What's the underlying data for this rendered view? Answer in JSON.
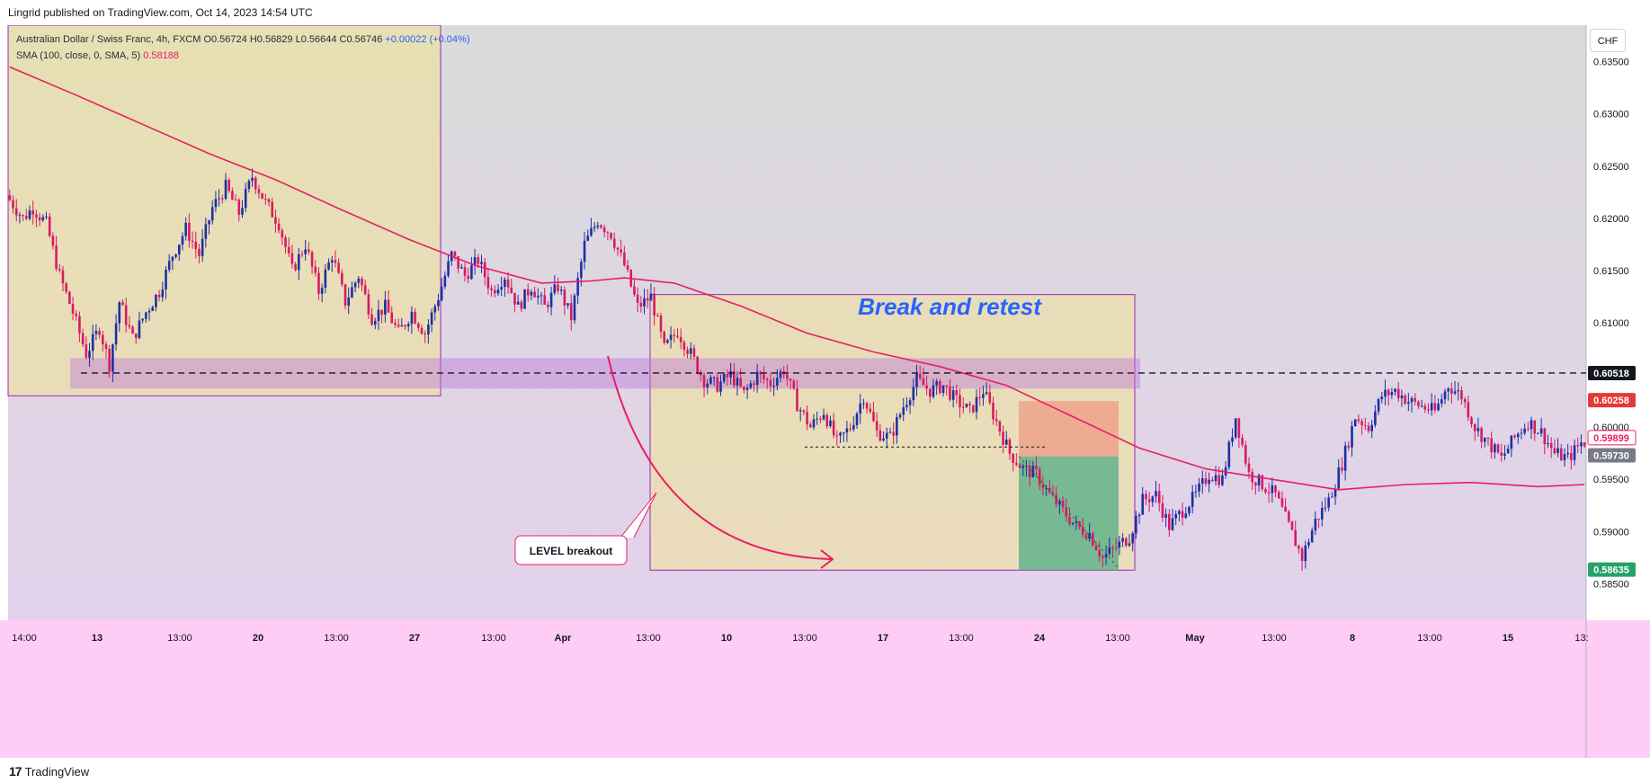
{
  "publisher": "Lingrid published on TradingView.com, Oct 14, 2023 14:54 UTC",
  "legend": {
    "symbol": "Australian Dollar / Swiss Franc, 4h, FXCM",
    "ohlc": "O0.56724 H0.56829 L0.56644 C0.56746",
    "change": "+0.00022 (+0.04%)",
    "sma_label": "SMA (100, close, 0, SMA, 5)",
    "sma_value": "0.58188"
  },
  "currency_button": "CHF",
  "footer_logo": "TradingView",
  "annotations": {
    "title": "Break and retest",
    "callout": "LEVEL breakout"
  },
  "colors": {
    "bull": "#1e2fa3",
    "bear": "#d81b60",
    "sma": "#e91e63",
    "title": "#2962ff",
    "bg_top": "#d9dbd9",
    "bg_bottom": "#e3d1ec",
    "yellow_zone": "rgba(240,228,150,0.55)",
    "level_band": "rgba(190,120,220,0.45)",
    "stop_zone": "rgba(240,140,120,0.6)",
    "target_zone": "rgba(70,170,130,0.7)"
  },
  "chart_data": {
    "type": "candlestick",
    "timeframe": "4h",
    "ylim": [
      0.5815,
      0.6385
    ],
    "y_ticks": [
      0.585,
      0.59,
      0.595,
      0.6,
      0.605,
      0.61,
      0.615,
      0.62,
      0.625,
      0.63,
      0.635
    ],
    "y_tick_labels": [
      "0.58500",
      "0.59000",
      "0.59500",
      "0.60000",
      "0.60500",
      "0.61000",
      "0.61500",
      "0.62000",
      "0.62500",
      "0.63000",
      "0.63500"
    ],
    "x_tick_labels": [
      "14:00",
      "13",
      "13:00",
      "20",
      "13:00",
      "27",
      "13:00",
      "Apr",
      "13:00",
      "10",
      "13:00",
      "17",
      "13:00",
      "24",
      "13:00",
      "May",
      "13:00",
      "8",
      "13:00",
      "15",
      "13:"
    ],
    "price_labels": [
      {
        "value": 0.60518,
        "text": "0.60518",
        "color": "#131722"
      },
      {
        "value": 0.60258,
        "text": "0.60258",
        "color": "#e53935"
      },
      {
        "value": 0.59899,
        "text": "0.59899",
        "color": "#ffffff"
      },
      {
        "value": 0.5973,
        "text": "0.59730",
        "color": "#787b86"
      },
      {
        "value": 0.58635,
        "text": "0.58635",
        "color": "#26a269"
      }
    ],
    "level_price": 0.60518,
    "level_band": [
      0.6037,
      0.6066
    ],
    "retest_line_price": 0.5981,
    "path": [
      [
        0,
        0.6222
      ],
      [
        5,
        0.62
      ],
      [
        8,
        0.621
      ],
      [
        12,
        0.6195
      ],
      [
        16,
        0.6145
      ],
      [
        20,
        0.611
      ],
      [
        24,
        0.607
      ],
      [
        28,
        0.6095
      ],
      [
        31,
        0.606
      ],
      [
        34,
        0.612
      ],
      [
        38,
        0.6085
      ],
      [
        42,
        0.611
      ],
      [
        46,
        0.613
      ],
      [
        50,
        0.6165
      ],
      [
        54,
        0.619
      ],
      [
        58,
        0.6165
      ],
      [
        62,
        0.621
      ],
      [
        66,
        0.623
      ],
      [
        70,
        0.6205
      ],
      [
        74,
        0.624
      ],
      [
        78,
        0.6215
      ],
      [
        82,
        0.6195
      ],
      [
        86,
        0.615
      ],
      [
        90,
        0.6175
      ],
      [
        94,
        0.613
      ],
      [
        98,
        0.6165
      ],
      [
        102,
        0.612
      ],
      [
        106,
        0.6145
      ],
      [
        110,
        0.6105
      ],
      [
        114,
        0.6115
      ],
      [
        118,
        0.609
      ],
      [
        122,
        0.611
      ],
      [
        126,
        0.609
      ],
      [
        130,
        0.6125
      ],
      [
        134,
        0.6165
      ],
      [
        138,
        0.6145
      ],
      [
        142,
        0.616
      ],
      [
        146,
        0.613
      ],
      [
        150,
        0.6145
      ],
      [
        154,
        0.6115
      ],
      [
        158,
        0.6135
      ],
      [
        162,
        0.6115
      ],
      [
        166,
        0.6135
      ],
      [
        170,
        0.6105
      ],
      [
        174,
        0.6175
      ],
      [
        178,
        0.6198
      ],
      [
        182,
        0.6185
      ],
      [
        186,
        0.6155
      ],
      [
        190,
        0.6115
      ],
      [
        194,
        0.6125
      ],
      [
        198,
        0.6075
      ],
      [
        202,
        0.6092
      ],
      [
        206,
        0.607
      ],
      [
        210,
        0.6045
      ],
      [
        214,
        0.604
      ],
      [
        218,
        0.605
      ],
      [
        222,
        0.6032
      ],
      [
        226,
        0.605
      ],
      [
        230,
        0.6042
      ],
      [
        234,
        0.6055
      ],
      [
        238,
        0.6022
      ],
      [
        242,
        0.6
      ],
      [
        246,
        0.6015
      ],
      [
        250,
        0.5985
      ],
      [
        254,
        0.6
      ],
      [
        258,
        0.603
      ],
      [
        262,
        0.5995
      ],
      [
        266,
        0.599
      ],
      [
        270,
        0.602
      ],
      [
        274,
        0.6045
      ],
      [
        278,
        0.6035
      ],
      [
        282,
        0.604
      ],
      [
        286,
        0.6025
      ],
      [
        290,
        0.6015
      ],
      [
        294,
        0.6035
      ],
      [
        298,
        0.6005
      ],
      [
        302,
        0.5975
      ],
      [
        306,
        0.596
      ],
      [
        310,
        0.5955
      ],
      [
        314,
        0.5935
      ],
      [
        318,
        0.592
      ],
      [
        322,
        0.5905
      ],
      [
        326,
        0.5898
      ],
      [
        330,
        0.5875
      ],
      [
        334,
        0.5885
      ],
      [
        338,
        0.5895
      ],
      [
        342,
        0.593
      ],
      [
        346,
        0.5935
      ],
      [
        350,
        0.5905
      ],
      [
        354,
        0.592
      ],
      [
        358,
        0.5935
      ],
      [
        362,
        0.5955
      ],
      [
        366,
        0.595
      ],
      [
        370,
        0.601
      ],
      [
        374,
        0.5955
      ],
      [
        378,
        0.5945
      ],
      [
        382,
        0.5935
      ],
      [
        386,
        0.5905
      ],
      [
        390,
        0.5875
      ],
      [
        394,
        0.591
      ],
      [
        398,
        0.593
      ],
      [
        402,
        0.5965
      ],
      [
        406,
        0.601
      ],
      [
        410,
        0.6
      ],
      [
        414,
        0.603
      ],
      [
        418,
        0.6035
      ],
      [
        422,
        0.6025
      ],
      [
        426,
        0.602
      ],
      [
        430,
        0.6015
      ],
      [
        434,
        0.604
      ],
      [
        438,
        0.603
      ],
      [
        442,
        0.6
      ],
      [
        446,
        0.5985
      ],
      [
        450,
        0.597
      ],
      [
        454,
        0.599
      ],
      [
        458,
        0.6005
      ],
      [
        462,
        0.5995
      ],
      [
        466,
        0.5975
      ],
      [
        470,
        0.597
      ],
      [
        474,
        0.5985
      ]
    ],
    "sma": [
      [
        0,
        0.6345
      ],
      [
        20,
        0.6318
      ],
      [
        40,
        0.629
      ],
      [
        60,
        0.6262
      ],
      [
        80,
        0.6237
      ],
      [
        100,
        0.6208
      ],
      [
        120,
        0.618
      ],
      [
        140,
        0.6155
      ],
      [
        160,
        0.6138
      ],
      [
        175,
        0.614
      ],
      [
        185,
        0.6143
      ],
      [
        200,
        0.6138
      ],
      [
        220,
        0.6116
      ],
      [
        240,
        0.609
      ],
      [
        260,
        0.6072
      ],
      [
        280,
        0.6058
      ],
      [
        300,
        0.604
      ],
      [
        320,
        0.601
      ],
      [
        340,
        0.598
      ],
      [
        360,
        0.596
      ],
      [
        380,
        0.595
      ],
      [
        400,
        0.594
      ],
      [
        420,
        0.5945
      ],
      [
        440,
        0.5947
      ],
      [
        460,
        0.5943
      ],
      [
        474,
        0.5945
      ]
    ]
  }
}
